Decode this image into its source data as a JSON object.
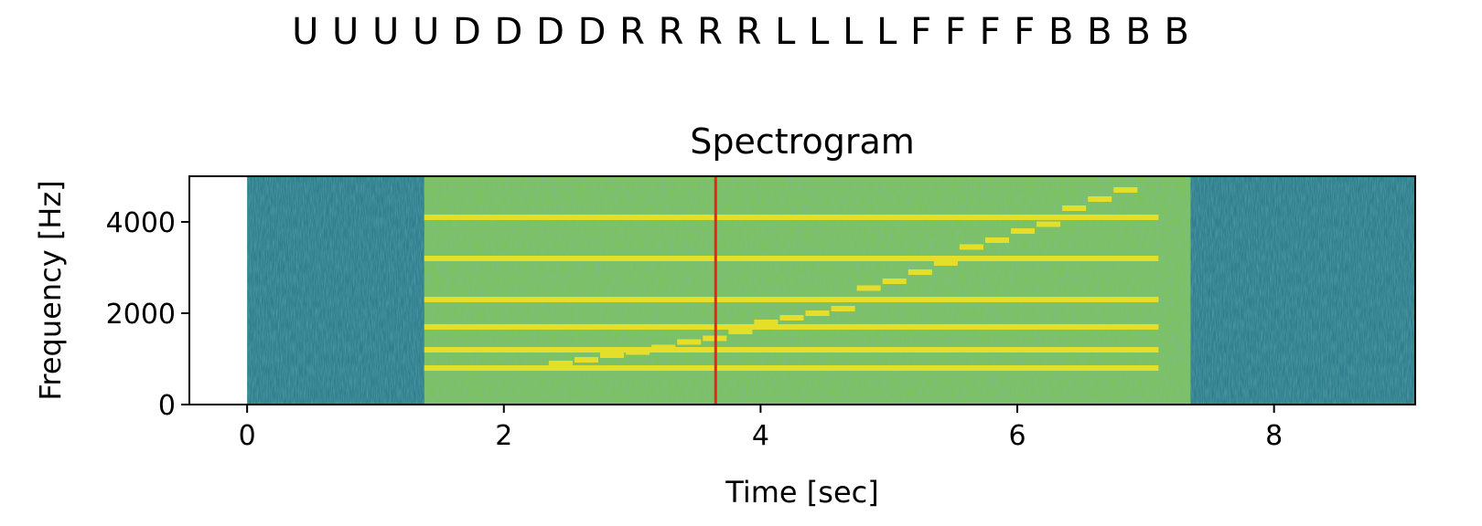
{
  "header_sequence": "U U U U D D D D R R R R L L L L F F F F B B B B",
  "chart_data": {
    "type": "heatmap",
    "title": "Spectrogram",
    "xlabel": "Time [sec]",
    "ylabel": "Frequency [Hz]",
    "xlim": [
      -0.45,
      9.1
    ],
    "ylim": [
      0,
      5000
    ],
    "x_ticks": [
      0,
      2,
      4,
      6,
      8
    ],
    "y_ticks": [
      0,
      2000,
      4000
    ],
    "grid": false,
    "colormap": "viridis",
    "spectrogram_extent": {
      "t_start": 0,
      "t_end": 9.1,
      "f_start": 0,
      "f_end": 5000
    },
    "active_segment": {
      "t_start": 1.38,
      "t_end": 7.35
    },
    "quiet_segments": [
      {
        "t_start": 0,
        "t_end": 1.38
      },
      {
        "t_start": 7.35,
        "t_end": 9.1
      }
    ],
    "tone_lines": [
      {
        "t_start": 1.38,
        "t_end": 7.1,
        "freq": 4100
      },
      {
        "t_start": 1.38,
        "t_end": 7.1,
        "freq": 3200
      },
      {
        "t_start": 1.38,
        "t_end": 7.1,
        "freq": 2300
      },
      {
        "t_start": 1.38,
        "t_end": 7.1,
        "freq": 1700
      },
      {
        "t_start": 1.38,
        "t_end": 7.1,
        "freq": 1200
      },
      {
        "t_start": 1.38,
        "t_end": 7.1,
        "freq": 800
      }
    ],
    "sweep_tones": [
      {
        "t_start": 2.35,
        "t_end": 2.55,
        "freq": 900
      },
      {
        "t_start": 2.55,
        "t_end": 2.75,
        "freq": 980
      },
      {
        "t_start": 2.75,
        "t_end": 2.95,
        "freq": 1080
      },
      {
        "t_start": 2.95,
        "t_end": 3.15,
        "freq": 1150
      },
      {
        "t_start": 3.15,
        "t_end": 3.35,
        "freq": 1250
      },
      {
        "t_start": 3.35,
        "t_end": 3.55,
        "freq": 1370
      },
      {
        "t_start": 3.55,
        "t_end": 3.75,
        "freq": 1450
      },
      {
        "t_start": 3.75,
        "t_end": 3.95,
        "freq": 1600
      },
      {
        "t_start": 3.95,
        "t_end": 4.15,
        "freq": 1800
      },
      {
        "t_start": 4.15,
        "t_end": 4.35,
        "freq": 1900
      },
      {
        "t_start": 4.35,
        "t_end": 4.55,
        "freq": 2000
      },
      {
        "t_start": 4.55,
        "t_end": 4.75,
        "freq": 2100
      },
      {
        "t_start": 4.75,
        "t_end": 4.95,
        "freq": 2550
      },
      {
        "t_start": 4.95,
        "t_end": 5.15,
        "freq": 2700
      },
      {
        "t_start": 5.15,
        "t_end": 5.35,
        "freq": 2900
      },
      {
        "t_start": 5.35,
        "t_end": 5.55,
        "freq": 3100
      },
      {
        "t_start": 5.55,
        "t_end": 5.75,
        "freq": 3450
      },
      {
        "t_start": 5.75,
        "t_end": 5.95,
        "freq": 3600
      },
      {
        "t_start": 5.95,
        "t_end": 6.15,
        "freq": 3800
      },
      {
        "t_start": 6.15,
        "t_end": 6.35,
        "freq": 3950
      },
      {
        "t_start": 6.35,
        "t_end": 6.55,
        "freq": 4300
      },
      {
        "t_start": 6.55,
        "t_end": 6.75,
        "freq": 4500
      },
      {
        "t_start": 6.75,
        "t_end": 6.95,
        "freq": 4700
      }
    ],
    "cursor": {
      "time": 3.65,
      "color": "#e8251b"
    },
    "colors": {
      "quiet_background": "#2f7f8e",
      "active_background": "#7cc25e",
      "tone": "#e5df2a",
      "plot_border": "#000000"
    }
  }
}
